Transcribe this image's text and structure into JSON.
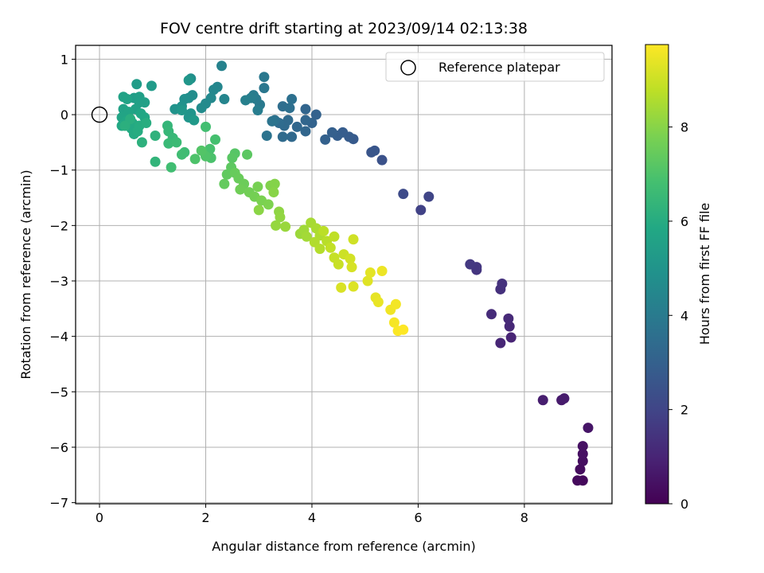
{
  "chart_data": {
    "type": "scatter",
    "title": "FOV centre drift starting at 2023/09/14 02:13:38",
    "xlabel": "Angular distance from reference (arcmin)",
    "ylabel": "Rotation from reference (arcmin)",
    "xlim": [
      -0.45,
      9.65
    ],
    "ylim": [
      -7.02,
      1.25
    ],
    "xticks": [
      0,
      2,
      4,
      6,
      8
    ],
    "xtick_labels": [
      "0",
      "2",
      "4",
      "6",
      "8"
    ],
    "yticks": [
      1,
      0,
      -1,
      -2,
      -3,
      -4,
      -5,
      -6,
      -7
    ],
    "ytick_labels": [
      "1",
      "0",
      "−1",
      "−2",
      "−3",
      "−4",
      "−5",
      "−6",
      "−7"
    ],
    "grid": true,
    "legend": {
      "placement": "top-right",
      "entries": [
        "Reference platepar"
      ]
    },
    "reference_point": {
      "x": 0,
      "y": 0
    },
    "colorbar": {
      "label": "Hours from first FF file",
      "colormap": "viridis",
      "range": [
        0,
        9.75
      ],
      "ticks": [
        0,
        2,
        4,
        6,
        8
      ],
      "tick_labels": [
        "0",
        "2",
        "4",
        "6",
        "8"
      ]
    },
    "points": [
      [
        9.1,
        -6.6,
        0.2
      ],
      [
        9.0,
        -6.6,
        0.25
      ],
      [
        9.05,
        -6.4,
        0.3
      ],
      [
        9.1,
        -6.25,
        0.35
      ],
      [
        9.1,
        -6.12,
        0.4
      ],
      [
        9.1,
        -5.98,
        0.45
      ],
      [
        9.2,
        -5.65,
        0.55
      ],
      [
        8.7,
        -5.15,
        0.7
      ],
      [
        8.75,
        -5.12,
        0.75
      ],
      [
        8.35,
        -5.15,
        0.8
      ],
      [
        7.75,
        -4.02,
        1.0
      ],
      [
        7.55,
        -4.12,
        1.05
      ],
      [
        7.72,
        -3.82,
        1.1
      ],
      [
        7.7,
        -3.68,
        1.15
      ],
      [
        7.38,
        -3.6,
        1.2
      ],
      [
        7.55,
        -3.15,
        1.35
      ],
      [
        7.58,
        -3.05,
        1.4
      ],
      [
        7.1,
        -2.8,
        1.5
      ],
      [
        7.1,
        -2.75,
        1.55
      ],
      [
        6.98,
        -2.7,
        1.6
      ],
      [
        6.05,
        -1.72,
        1.9
      ],
      [
        6.2,
        -1.48,
        2.0
      ],
      [
        5.72,
        -1.43,
        2.2
      ],
      [
        5.32,
        -0.82,
        2.45
      ],
      [
        5.12,
        -0.68,
        2.55
      ],
      [
        5.18,
        -0.65,
        2.6
      ],
      [
        4.78,
        -0.44,
        2.75
      ],
      [
        4.7,
        -0.4,
        2.8
      ],
      [
        4.58,
        -0.32,
        2.85
      ],
      [
        4.48,
        -0.38,
        2.9
      ],
      [
        4.38,
        -0.32,
        2.95
      ],
      [
        4.25,
        -0.45,
        3.0
      ],
      [
        4.08,
        0.0,
        3.05
      ],
      [
        4.0,
        -0.15,
        3.1
      ],
      [
        3.88,
        0.1,
        3.15
      ],
      [
        3.88,
        -0.1,
        3.2
      ],
      [
        3.88,
        -0.3,
        3.2
      ],
      [
        3.72,
        -0.22,
        3.25
      ],
      [
        3.62,
        -0.4,
        3.3
      ],
      [
        3.55,
        -0.1,
        3.35
      ],
      [
        3.48,
        -0.2,
        3.35
      ],
      [
        3.45,
        -0.4,
        3.4
      ],
      [
        3.38,
        -0.15,
        3.45
      ],
      [
        3.45,
        0.15,
        3.5
      ],
      [
        3.58,
        0.12,
        3.55
      ],
      [
        3.62,
        0.28,
        3.6
      ],
      [
        3.3,
        -0.1,
        3.65
      ],
      [
        3.15,
        -0.38,
        3.7
      ],
      [
        3.25,
        -0.12,
        3.75
      ],
      [
        3.1,
        0.48,
        3.85
      ],
      [
        3.1,
        0.68,
        3.9
      ],
      [
        3.02,
        0.18,
        3.95
      ],
      [
        2.95,
        0.28,
        4.0
      ],
      [
        2.9,
        0.35,
        4.05
      ],
      [
        2.98,
        0.08,
        4.1
      ],
      [
        2.85,
        0.3,
        4.15
      ],
      [
        2.75,
        0.26,
        4.2
      ],
      [
        2.3,
        0.88,
        4.3
      ],
      [
        2.35,
        0.28,
        4.4
      ],
      [
        2.22,
        0.5,
        4.45
      ],
      [
        2.15,
        0.45,
        4.5
      ],
      [
        2.1,
        0.3,
        4.55
      ],
      [
        2.0,
        0.2,
        4.6
      ],
      [
        1.92,
        0.12,
        4.65
      ],
      [
        1.75,
        0.35,
        4.7
      ],
      [
        1.68,
        0.3,
        4.75
      ],
      [
        1.72,
        0.65,
        4.8
      ],
      [
        1.6,
        0.28,
        4.85
      ],
      [
        1.55,
        0.15,
        4.9
      ],
      [
        1.42,
        0.1,
        4.95
      ],
      [
        1.72,
        0.02,
        5.0
      ],
      [
        1.68,
        -0.05,
        5.05
      ],
      [
        1.68,
        0.62,
        5.1
      ],
      [
        1.55,
        0.08,
        5.15
      ],
      [
        1.78,
        -0.1,
        5.2
      ],
      [
        0.98,
        0.52,
        5.3
      ],
      [
        0.7,
        0.55,
        5.35
      ],
      [
        0.65,
        0.3,
        5.4
      ],
      [
        0.75,
        0.32,
        5.45
      ],
      [
        0.75,
        0.22,
        5.5
      ],
      [
        0.85,
        0.22,
        5.5
      ],
      [
        0.68,
        0.1,
        5.55
      ],
      [
        0.45,
        0.32,
        5.6
      ],
      [
        0.45,
        0.1,
        5.6
      ],
      [
        0.52,
        0.28,
        5.65
      ],
      [
        0.55,
        0.05,
        5.7
      ],
      [
        0.42,
        -0.05,
        5.7
      ],
      [
        0.78,
        0.02,
        5.75
      ],
      [
        0.85,
        -0.05,
        5.8
      ],
      [
        0.5,
        -0.12,
        5.8
      ],
      [
        0.42,
        -0.2,
        5.85
      ],
      [
        0.62,
        -0.15,
        5.9
      ],
      [
        0.6,
        -0.25,
        5.9
      ],
      [
        0.65,
        -0.35,
        5.95
      ],
      [
        0.72,
        -0.3,
        6.0
      ],
      [
        0.75,
        -0.2,
        6.0
      ],
      [
        0.88,
        -0.15,
        6.05
      ],
      [
        0.58,
        -0.08,
        6.1
      ],
      [
        0.48,
        -0.2,
        6.15
      ],
      [
        0.8,
        -0.5,
        6.2
      ],
      [
        1.05,
        -0.38,
        6.25
      ],
      [
        1.05,
        -0.85,
        6.35
      ],
      [
        1.28,
        -0.2,
        6.4
      ],
      [
        1.3,
        -0.3,
        6.45
      ],
      [
        1.38,
        -0.42,
        6.5
      ],
      [
        1.3,
        -0.52,
        6.55
      ],
      [
        1.45,
        -0.5,
        6.6
      ],
      [
        1.6,
        -0.68,
        6.65
      ],
      [
        1.55,
        -0.72,
        6.7
      ],
      [
        1.35,
        -0.95,
        6.75
      ],
      [
        2.0,
        -0.22,
        6.8
      ],
      [
        2.18,
        -0.45,
        6.85
      ],
      [
        2.08,
        -0.62,
        6.9
      ],
      [
        2.1,
        -0.78,
        6.95
      ],
      [
        1.8,
        -0.8,
        7.0
      ],
      [
        2.0,
        -0.75,
        7.05
      ],
      [
        1.92,
        -0.65,
        7.1
      ],
      [
        2.55,
        -0.7,
        7.15
      ],
      [
        2.5,
        -0.78,
        7.2
      ],
      [
        2.78,
        -0.72,
        7.25
      ],
      [
        2.48,
        -0.95,
        7.3
      ],
      [
        2.4,
        -1.08,
        7.35
      ],
      [
        2.35,
        -1.25,
        7.4
      ],
      [
        2.55,
        -1.05,
        7.45
      ],
      [
        2.62,
        -1.15,
        7.5
      ],
      [
        2.72,
        -1.25,
        7.55
      ],
      [
        2.65,
        -1.35,
        7.6
      ],
      [
        2.82,
        -1.4,
        7.65
      ],
      [
        2.92,
        -1.48,
        7.7
      ],
      [
        2.98,
        -1.3,
        7.75
      ],
      [
        3.05,
        -1.55,
        7.8
      ],
      [
        3.18,
        -1.62,
        7.85
      ],
      [
        3.22,
        -1.28,
        7.9
      ],
      [
        3.3,
        -1.25,
        7.95
      ],
      [
        3.28,
        -1.4,
        8.0
      ],
      [
        3.0,
        -1.72,
        8.05
      ],
      [
        3.38,
        -1.75,
        8.1
      ],
      [
        3.4,
        -1.85,
        8.15
      ],
      [
        3.32,
        -2.0,
        8.2
      ],
      [
        3.5,
        -2.02,
        8.25
      ],
      [
        3.78,
        -2.15,
        8.3
      ],
      [
        3.85,
        -2.08,
        8.35
      ],
      [
        3.9,
        -2.2,
        8.4
      ],
      [
        3.98,
        -1.95,
        8.45
      ],
      [
        4.08,
        -2.05,
        8.5
      ],
      [
        4.15,
        -2.18,
        8.55
      ],
      [
        4.05,
        -2.3,
        8.6
      ],
      [
        4.15,
        -2.42,
        8.65
      ],
      [
        4.28,
        -2.28,
        8.7
      ],
      [
        4.22,
        -2.1,
        8.75
      ],
      [
        4.42,
        -2.2,
        8.8
      ],
      [
        4.35,
        -2.4,
        8.85
      ],
      [
        4.42,
        -2.58,
        8.9
      ],
      [
        4.5,
        -2.7,
        8.95
      ],
      [
        4.6,
        -2.52,
        9.0
      ],
      [
        4.78,
        -2.25,
        9.05
      ],
      [
        4.72,
        -2.6,
        9.1
      ],
      [
        4.75,
        -2.75,
        9.15
      ],
      [
        4.55,
        -3.12,
        9.2
      ],
      [
        4.78,
        -3.1,
        9.25
      ],
      [
        5.05,
        -3.0,
        9.3
      ],
      [
        5.1,
        -2.85,
        9.35
      ],
      [
        5.2,
        -3.3,
        9.4
      ],
      [
        5.25,
        -3.38,
        9.45
      ],
      [
        5.32,
        -2.82,
        9.5
      ],
      [
        5.48,
        -3.52,
        9.55
      ],
      [
        5.58,
        -3.42,
        9.6
      ],
      [
        5.55,
        -3.75,
        9.65
      ],
      [
        5.62,
        -3.9,
        9.7
      ],
      [
        5.72,
        -3.88,
        9.75
      ]
    ]
  }
}
